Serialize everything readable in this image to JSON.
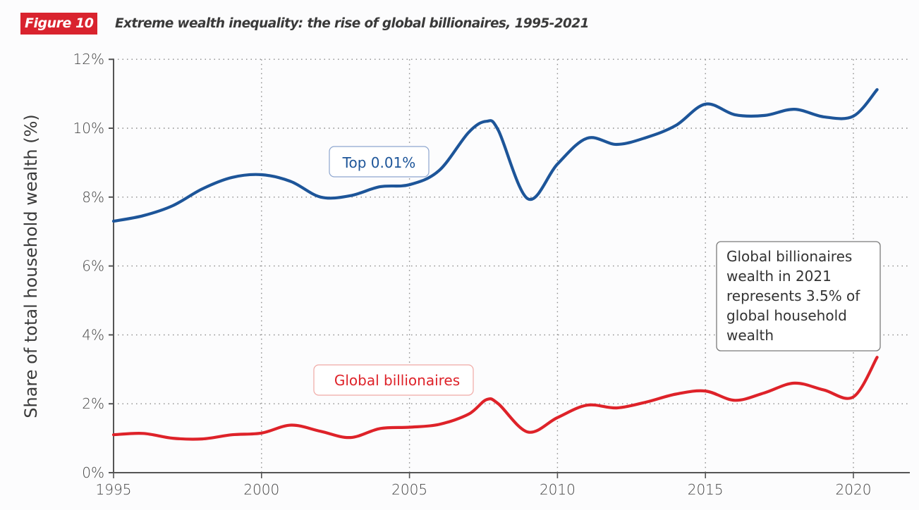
{
  "header": {
    "figure_badge": "Figure 10",
    "title": "Extreme wealth inequality: the rise of global billionaires, 1995-2021"
  },
  "colors": {
    "badge_bg": "#d9232e",
    "top001": "#1d5599",
    "billionaires": "#de2229",
    "annotation_border": "#7a7a7a",
    "grid": "#8a8a8a",
    "axis": "#555555"
  },
  "annotation": {
    "lines": [
      "Global billionaires",
      "wealth in 2021",
      "represents 3.5% of",
      "global household",
      "wealth"
    ]
  },
  "chart_data": {
    "type": "line",
    "title": "Extreme wealth inequality: the rise of global billionaires, 1995-2021",
    "xlabel": "",
    "ylabel": "Share of total household wealth (%)",
    "xlim": [
      1995,
      2022
    ],
    "ylim": [
      0,
      12
    ],
    "x_ticks": [
      1995,
      2000,
      2005,
      2010,
      2015,
      2020
    ],
    "x_tick_labels": [
      "1995",
      "2000",
      "2005",
      "2010",
      "2015",
      "2020"
    ],
    "y_ticks": [
      0,
      2,
      4,
      6,
      8,
      10,
      12
    ],
    "y_tick_labels": [
      "0%",
      "2%",
      "4%",
      "6%",
      "8%",
      "10%",
      "12%"
    ],
    "grid": true,
    "legend": "inline-labels",
    "series": [
      {
        "name": "Top 0.01%",
        "label": "Top 0.01%",
        "x": [
          1995,
          1996,
          1997,
          1998,
          1999,
          2000,
          2001,
          2002,
          2003,
          2004,
          2005,
          2006,
          2007,
          2007.6,
          2008,
          2009,
          2010,
          2011,
          2012,
          2013,
          2014,
          2015,
          2016,
          2017,
          2018,
          2019,
          2020,
          2020.8
        ],
        "values": [
          7.3,
          7.46,
          7.75,
          8.24,
          8.57,
          8.65,
          8.45,
          8.0,
          8.04,
          8.3,
          8.36,
          8.77,
          9.88,
          10.2,
          9.94,
          7.95,
          8.96,
          9.71,
          9.53,
          9.73,
          10.08,
          10.7,
          10.39,
          10.37,
          10.55,
          10.33,
          10.35,
          11.12
        ]
      },
      {
        "name": "Global billionaires",
        "label": "Global billionaires",
        "x": [
          1995,
          1996,
          1997,
          1998,
          1999,
          2000,
          2001,
          2002,
          2003,
          2004,
          2005,
          2006,
          2007,
          2007.6,
          2008,
          2009,
          2010,
          2011,
          2012,
          2013,
          2014,
          2015,
          2016,
          2017,
          2018,
          2019,
          2020,
          2020.8
        ],
        "values": [
          1.1,
          1.14,
          1.0,
          0.98,
          1.1,
          1.15,
          1.38,
          1.2,
          1.02,
          1.28,
          1.32,
          1.4,
          1.7,
          2.12,
          2.0,
          1.18,
          1.6,
          1.96,
          1.88,
          2.05,
          2.28,
          2.37,
          2.1,
          2.32,
          2.6,
          2.4,
          2.2,
          3.35
        ]
      }
    ],
    "annotations": [
      {
        "text": "Global billionaires wealth in 2021 represents 3.5% of global household wealth",
        "target_series": "Global billionaires",
        "target_x": 2021
      }
    ]
  }
}
